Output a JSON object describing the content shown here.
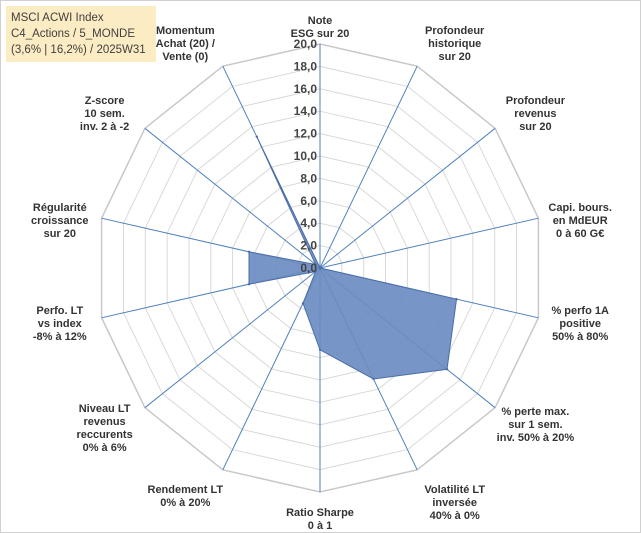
{
  "title_box": {
    "line1": "MSCI ACWI Index",
    "line2": "C4_Actions / 5_MONDE",
    "line3": "(3,6% | 16,2%) / 2025W31"
  },
  "colors": {
    "fill": "#6b8cc1",
    "stroke": "#4a6ea8",
    "grid": "#d9d9d9",
    "spoke": "#4f81bd",
    "title_bg": "#fcecc4"
  },
  "chart_data": {
    "type": "radar",
    "ylim": [
      0,
      20
    ],
    "tick_labels": [
      "0,0",
      "2,0",
      "4,0",
      "6,0",
      "8,0",
      "10,0",
      "12,0",
      "14,0",
      "16,0",
      "18,0",
      "20,0"
    ],
    "grid": true,
    "categories": [
      [
        "Note",
        "ESG sur 20"
      ],
      [
        "Profondeur",
        "historique",
        "sur 20"
      ],
      [
        "Profondeur",
        "revenus",
        "sur 20"
      ],
      [
        "Capi. bours.",
        "en MdEUR",
        "0 à 60 G€"
      ],
      [
        "% perfo 1A",
        "positive",
        "50% à 80%"
      ],
      [
        "% perte max.",
        "sur 1 sem.",
        "inv. 50% à 20%"
      ],
      [
        "Volatilité LT",
        "inversée",
        "40% à 0%"
      ],
      [
        "Ratio Sharpe",
        "0 à 1"
      ],
      [
        "Rendement LT",
        "0% à 20%"
      ],
      [
        "Niveau LT",
        "revenus",
        "reccurents",
        "0% à 6%"
      ],
      [
        "Perfo. LT",
        "vs index",
        "-8% à 12%"
      ],
      [
        "Régularité",
        "croissance",
        "sur 20"
      ],
      [
        "Z-score",
        "10 sem.",
        "inv. 2 à -2"
      ],
      [
        "Momentum",
        "Achat (20) /",
        "Vente (0)"
      ]
    ],
    "series": [
      {
        "values": [
          0.0,
          0.0,
          0.0,
          0.0,
          12.5,
          14.5,
          11.0,
          7.3,
          3.5,
          0.5,
          6.5,
          6.5,
          0.5,
          13.0
        ]
      }
    ]
  }
}
